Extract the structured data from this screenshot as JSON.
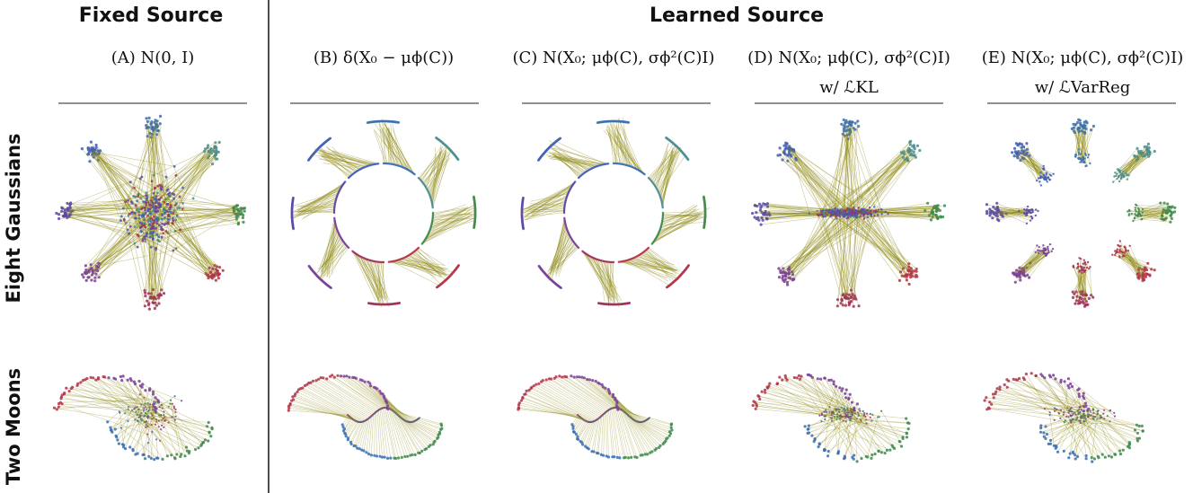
{
  "headers": {
    "fixed": "Fixed Source",
    "learned": "Learned Source"
  },
  "columns": [
    {
      "id": "A",
      "label": "(A) N(0, I)",
      "sub": ""
    },
    {
      "id": "B",
      "label": "(B) δ(X₀ − μϕ(C))",
      "sub": ""
    },
    {
      "id": "C",
      "label": "(C) N(X₀; μϕ(C), σϕ²(C)I)",
      "sub": ""
    },
    {
      "id": "D",
      "label": "(D) N(X₀; μϕ(C), σϕ²(C)I)",
      "sub": "w/ ℒKL"
    },
    {
      "id": "E",
      "label": "(E) N(X₀; μϕ(C), σϕ²(C)I)",
      "sub": "w/ ℒVarReg"
    }
  ],
  "rows": [
    {
      "id": "gaussians",
      "label": "Eight Gaussians"
    },
    {
      "id": "moons",
      "label": "Two Moons"
    }
  ],
  "colors": {
    "link": "#8f8a14",
    "clusters": [
      "#3a6fb0",
      "#4a8e93",
      "#3f8a4c",
      "#b3344a",
      "#a0305a",
      "#7a3f98",
      "#5b46a6",
      "#3f5fb8"
    ]
  }
}
